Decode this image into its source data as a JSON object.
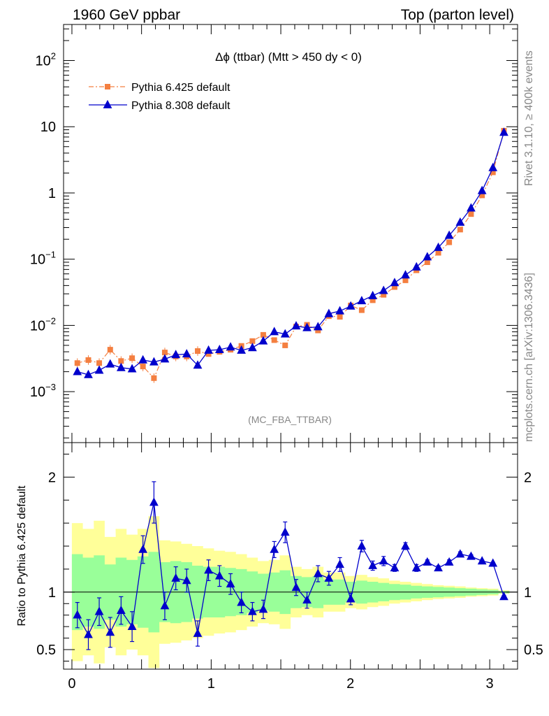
{
  "header": {
    "left": "1960 GeV ppbar",
    "right": "Top (parton level)"
  },
  "side_texts": {
    "rivet": "Rivet 3.1.10, ≥ 400k events",
    "mcplots": "mcplots.cern.ch [arXiv:1306.3436]"
  },
  "chart_data": [
    {
      "type": "line",
      "title": "Δϕ (ttbar) (Mtt > 450 dy < 0)",
      "watermark": "(MC_FBA_TTBAR)",
      "yscale": "log",
      "xlim": [
        -0.06,
        3.2
      ],
      "ylim": [
        0.00017,
        350
      ],
      "y_tick_labels": [
        "10^-3",
        "10^-2",
        "10^-1",
        "1",
        "10",
        "10^2"
      ],
      "legend_position": "top-left",
      "x": [
        0.039,
        0.118,
        0.196,
        0.275,
        0.353,
        0.432,
        0.51,
        0.589,
        0.667,
        0.746,
        0.824,
        0.903,
        0.981,
        1.06,
        1.139,
        1.217,
        1.296,
        1.374,
        1.453,
        1.531,
        1.61,
        1.688,
        1.767,
        1.845,
        1.924,
        2.002,
        2.081,
        2.16,
        2.238,
        2.317,
        2.395,
        2.474,
        2.552,
        2.631,
        2.709,
        2.788,
        2.866,
        2.945,
        3.023,
        3.102
      ],
      "series": [
        {
          "name": "Pythia 6.425 default",
          "color": "#f47f40",
          "marker": "square",
          "line": "dash-dot",
          "values": [
            0.0027,
            0.003,
            0.0027,
            0.0043,
            0.0029,
            0.0032,
            0.0024,
            0.0016,
            0.0039,
            0.0034,
            0.0034,
            0.0041,
            0.0037,
            0.004,
            0.0043,
            0.0049,
            0.0058,
            0.0072,
            0.006,
            0.005,
            0.0096,
            0.0102,
            0.0084,
            0.0138,
            0.0135,
            0.02,
            0.017,
            0.024,
            0.029,
            0.038,
            0.048,
            0.068,
            0.09,
            0.125,
            0.18,
            0.28,
            0.48,
            0.92,
            2.05,
            8.7
          ]
        },
        {
          "name": "Pythia 8.308 default",
          "color": "#0000cc",
          "marker": "triangle",
          "line": "solid",
          "values": [
            0.002,
            0.0018,
            0.0021,
            0.0026,
            0.0023,
            0.0022,
            0.003,
            0.0028,
            0.0031,
            0.0036,
            0.0037,
            0.0025,
            0.0042,
            0.0043,
            0.0047,
            0.0042,
            0.0046,
            0.0058,
            0.008,
            0.0074,
            0.0098,
            0.0092,
            0.0095,
            0.015,
            0.0165,
            0.0195,
            0.0235,
            0.028,
            0.0335,
            0.044,
            0.0575,
            0.076,
            0.108,
            0.15,
            0.228,
            0.36,
            0.59,
            1.08,
            2.4,
            8.2
          ]
        }
      ]
    },
    {
      "type": "line",
      "ylabel": "Ratio to Pythia 6.425 default",
      "xlim": [
        -0.06,
        3.2
      ],
      "ylim": [
        0.33,
        2.3
      ],
      "x_ticks": [
        0,
        1,
        2,
        3
      ],
      "y_ticks": [
        0.5,
        1,
        2
      ],
      "reference_line": 1,
      "bands": [
        {
          "color": "#ffff99",
          "level": "outer"
        },
        {
          "color": "#99ff99",
          "level": "inner"
        }
      ],
      "band_inner_hw": [
        0.33,
        0.3,
        0.32,
        0.24,
        0.3,
        0.28,
        0.31,
        0.35,
        0.26,
        0.27,
        0.26,
        0.23,
        0.22,
        0.22,
        0.21,
        0.2,
        0.18,
        0.16,
        0.17,
        0.19,
        0.14,
        0.13,
        0.14,
        0.11,
        0.11,
        0.09,
        0.1,
        0.09,
        0.08,
        0.07,
        0.065,
        0.055,
        0.05,
        0.045,
        0.04,
        0.035,
        0.03,
        0.025,
        0.02,
        0.01
      ],
      "band_outer_hw": [
        0.6,
        0.55,
        0.62,
        0.48,
        0.55,
        0.5,
        0.55,
        0.66,
        0.45,
        0.44,
        0.42,
        0.4,
        0.38,
        0.36,
        0.35,
        0.33,
        0.3,
        0.27,
        0.28,
        0.32,
        0.22,
        0.2,
        0.22,
        0.17,
        0.17,
        0.14,
        0.15,
        0.13,
        0.12,
        0.1,
        0.09,
        0.08,
        0.07,
        0.06,
        0.055,
        0.05,
        0.04,
        0.035,
        0.03,
        0.015
      ],
      "series": [
        {
          "name": "Pythia 8.308 default",
          "color": "#0000cc",
          "marker": "triangle",
          "values": [
            0.8,
            0.63,
            0.83,
            0.65,
            0.84,
            0.7,
            1.37,
            1.78,
            0.88,
            1.12,
            1.1,
            0.64,
            1.19,
            1.14,
            1.07,
            0.91,
            0.83,
            0.85,
            1.37,
            1.52,
            1.04,
            0.93,
            1.16,
            1.12,
            1.24,
            0.94,
            1.4,
            1.23,
            1.27,
            1.21,
            1.4,
            1.21,
            1.26,
            1.21,
            1.26,
            1.33,
            1.31,
            1.27,
            1.25,
            0.96
          ],
          "errors": [
            0.11,
            0.13,
            0.12,
            0.13,
            0.12,
            0.13,
            0.12,
            0.18,
            0.12,
            0.1,
            0.1,
            0.11,
            0.09,
            0.09,
            0.09,
            0.09,
            0.08,
            0.08,
            0.07,
            0.09,
            0.07,
            0.07,
            0.07,
            0.06,
            0.06,
            0.05,
            0.05,
            0.04,
            0.04,
            0.03,
            0.03,
            0.03,
            0.02,
            0.02,
            0.02,
            0.02,
            0.015,
            0.01,
            0.01,
            0.01
          ]
        }
      ]
    }
  ]
}
